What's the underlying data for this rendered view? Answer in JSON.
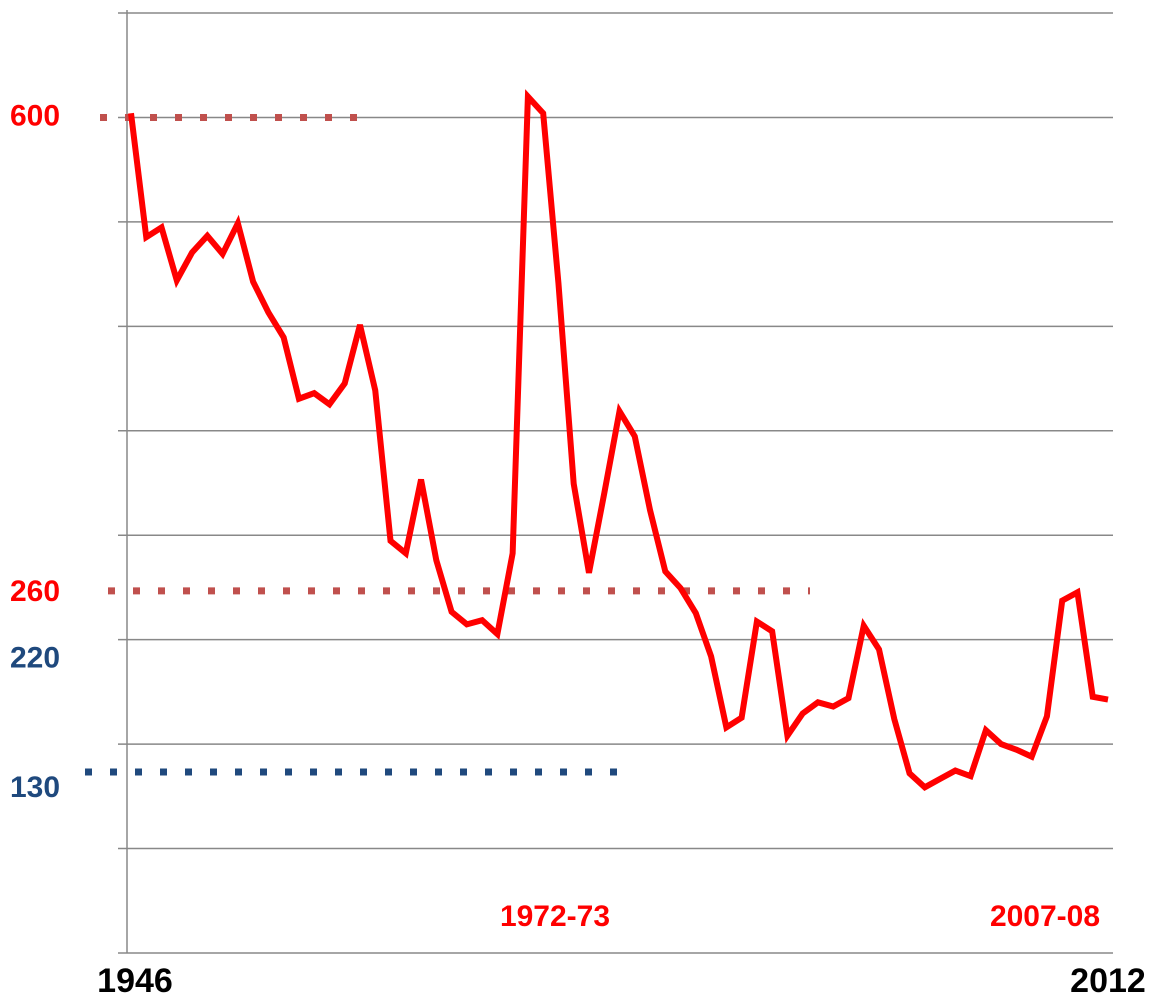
{
  "chart_data": {
    "type": "line",
    "categories": [
      "1946",
      null,
      null,
      null,
      null,
      null,
      null,
      null,
      null,
      null,
      null,
      null,
      null,
      null,
      null,
      null,
      null,
      null,
      null,
      null,
      null,
      null,
      null,
      null,
      null,
      null,
      null,
      null,
      null,
      null,
      null,
      null,
      null,
      null,
      null,
      null,
      null,
      null,
      null,
      null,
      null,
      null,
      null,
      null,
      null,
      null,
      null,
      null,
      null,
      null,
      null,
      null,
      null,
      null,
      null,
      null,
      null,
      null,
      null,
      null,
      null,
      null,
      null,
      null,
      "2012"
    ],
    "values": [
      603,
      514,
      521,
      483,
      503,
      515,
      502,
      524,
      482,
      460,
      442,
      398,
      402,
      394,
      409,
      451,
      404,
      296,
      287,
      340,
      282,
      245,
      236,
      239,
      229,
      287,
      615,
      603,
      481,
      337,
      273,
      330,
      389,
      371,
      318,
      274,
      262,
      244,
      213,
      162,
      169,
      238,
      231,
      156,
      172,
      180,
      177,
      183,
      235,
      218,
      168,
      129,
      119,
      125,
      131,
      127,
      160,
      150,
      146,
      141,
      170,
      253,
      259,
      184,
      182
    ],
    "color": "#ff0000",
    "ylim": [
      0,
      675
    ],
    "yticks": [
      75,
      150,
      225,
      300,
      375,
      450,
      525,
      600,
      675
    ],
    "grid": true,
    "y_annotations": [
      {
        "value": 600,
        "label": "600",
        "color": "#ff0000",
        "line_color": "#c0504d"
      },
      {
        "value": 260,
        "label": "260",
        "color": "#ff0000",
        "line_color": "#c0504d"
      },
      {
        "value": 220,
        "label": "220",
        "color": "#1f497d"
      },
      {
        "value": 130,
        "label": "130",
        "color": "#1f497d",
        "line_color": "#1f497d"
      }
    ],
    "annotations": [
      "1972-73",
      "2007-08"
    ]
  }
}
